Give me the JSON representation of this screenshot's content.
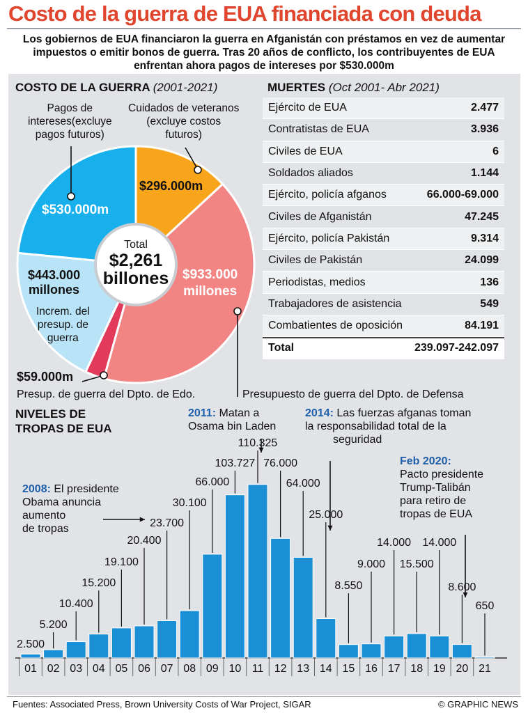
{
  "title": "Costo de la guerra de EUA financiada con deuda",
  "intro": "Los gobiernos de EUA financiaron la guerra en Afganistán con préstamos en vez de aumentar impuestos o emitir bonos de guerra. Tras 20 años de conflicto, los contribuyentes de EUA enfrentan ahora pagos de intereses por $530.000m",
  "cost_section": {
    "title": "COSTO DE LA GUERRA",
    "period": "(2001-2021)"
  },
  "deaths_section": {
    "title": "MUERTES",
    "period": "(Oct 2001- Abr 2021)"
  },
  "troops_section": {
    "title_line1": "NIVELES DE",
    "title_line2": "TROPAS DE EUA"
  },
  "donut_labels": {
    "interest_caption": [
      "Pagos de",
      "intereses(excluye",
      "pagos futuros)"
    ],
    "veterans_caption": [
      "Cuidados de veteranos",
      "(excluye costos",
      "futuros)"
    ],
    "base_caption": [
      "Increm. del",
      "presup. de",
      "guerra"
    ],
    "state_caption": "Presup. de guerra del Dpto. de Edo.",
    "defense_caption": "Presupuesto de guerra del Dpto. de Defensa",
    "total_line1": "Total",
    "total_line2": "$2,261",
    "total_line3": "billones",
    "interest_value": "$530.000m",
    "veterans_value": "$296.000m",
    "base_value_line1": "$443.000",
    "base_value_line2": "millones",
    "defense_value_line1": "$933.000",
    "defense_value_line2": "millones",
    "state_value": "$59.000m"
  },
  "deaths": [
    {
      "label": "Ejército de EUA",
      "value": "2.477"
    },
    {
      "label": "Contratistas de EUA",
      "value": "3.936"
    },
    {
      "label": "Civiles de EUA",
      "value": "6"
    },
    {
      "label": "Soldados aliados",
      "value": "1.144"
    },
    {
      "label": "Ejército, policía afganos",
      "value": "66.000-69.000"
    },
    {
      "label": "Civiles de Afganistán",
      "value": "47.245"
    },
    {
      "label": "Ejército, policía Pakistán",
      "value": "9.314"
    },
    {
      "label": "Civiles de Pakistán",
      "value": "24.099"
    },
    {
      "label": "Periodistas, medios",
      "value": "136"
    },
    {
      "label": "Trabajadores de asistencia",
      "value": "549"
    },
    {
      "label": "Combatientes de oposición",
      "value": "84.191"
    }
  ],
  "deaths_total": {
    "label": "Total",
    "value": "239.097-242.097"
  },
  "annotations": {
    "a2008_year": "2008:",
    "a2008_text": [
      "El presidente",
      "Obama anuncia",
      "aumento",
      "de tropas"
    ],
    "a2011_year": "2011:",
    "a2011_text": [
      "Matan a",
      "Osama bin Laden"
    ],
    "a2014_year": "2014:",
    "a2014_text": [
      "Las fuerzas afganas toman",
      "la responsabilidad total de la",
      "seguridad"
    ],
    "a2020_year": "Feb 2020:",
    "a2020_text": [
      "Pacto presidente",
      "Trump-Talibán",
      "para retiro de",
      "tropas de EUA"
    ]
  },
  "source": "Fuentes: Associated Press, Brown University Costs of War Project, SIGAR",
  "credit": "© GRAPHIC NEWS",
  "colors": {
    "title": "#e0452e",
    "bar": "#1a8fd6",
    "interest": "#17b0ec",
    "veterans": "#f8a51c",
    "defense": "#f28484",
    "state": "#e23a5a",
    "base": "#b9e3f7",
    "year": "#1f5fa8"
  },
  "chart_data": [
    {
      "type": "pie",
      "title": "COSTO DE LA GUERRA (2001-2021)",
      "center_label": "Total $2,261 billones",
      "units": "millones de US$",
      "slices": [
        {
          "name": "Pagos de intereses",
          "value": 530000,
          "label": "$530.000m"
        },
        {
          "name": "Cuidados de veteranos",
          "value": 296000,
          "label": "$296.000m"
        },
        {
          "name": "Presupuesto de guerra del Dpto. de Defensa",
          "value": 933000,
          "label": "$933.000 millones"
        },
        {
          "name": "Presup. de guerra del Dpto. de Edo.",
          "value": 59000,
          "label": "$59.000m"
        },
        {
          "name": "Increm. del presup. de guerra",
          "value": 443000,
          "label": "$443.000 millones"
        }
      ]
    },
    {
      "type": "bar",
      "title": "NIVELES DE TROPAS DE EUA",
      "categories": [
        "01",
        "02",
        "03",
        "04",
        "05",
        "06",
        "07",
        "08",
        "09",
        "10",
        "11",
        "12",
        "13",
        "14",
        "15",
        "16",
        "17",
        "18",
        "19",
        "20",
        "21"
      ],
      "values": [
        2500,
        5200,
        10400,
        15200,
        19100,
        20400,
        23700,
        30100,
        66000,
        103727,
        110325,
        76000,
        64000,
        25000,
        8550,
        9000,
        14000,
        15500,
        14000,
        8600,
        650
      ],
      "labels": [
        "2.500",
        "5.200",
        "10.400",
        "15.200",
        "19.100",
        "20.400",
        "23.700",
        "30.100",
        "66.000",
        "103.727",
        "110.325",
        "76.000",
        "64.000",
        "25.000",
        "8.550",
        "9.000",
        "14.000",
        "15.500",
        "14.000",
        "8.600",
        "650"
      ],
      "ylim": [
        0,
        112000
      ]
    }
  ]
}
